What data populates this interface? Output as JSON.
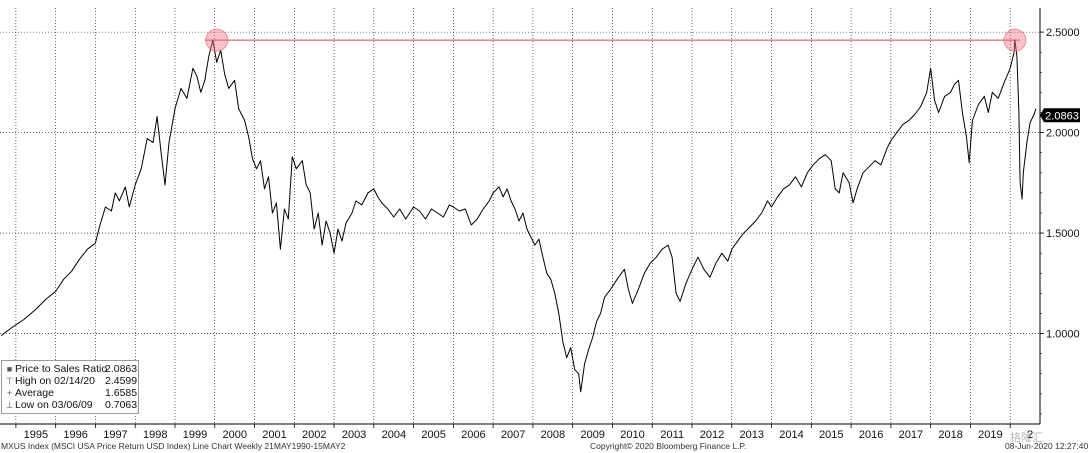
{
  "chart_data": {
    "type": "line",
    "x_tick_labels": [
      "1995",
      "1996",
      "1997",
      "1998",
      "1999",
      "2000",
      "2001",
      "2002",
      "2003",
      "2004",
      "2005",
      "2006",
      "2007",
      "2008",
      "2009",
      "2010",
      "2011",
      "2012",
      "2013",
      "2014",
      "2015",
      "2016",
      "2017",
      "2018",
      "2019",
      "2"
    ],
    "y_tick_labels": [
      "1.0000",
      "1.5000",
      "2.0000",
      "2.5000"
    ],
    "y_ticks": [
      1.0,
      1.5,
      2.0,
      2.5
    ],
    "ylim": [
      0.55,
      2.62
    ],
    "xlim": [
      1994.6,
      2020.75
    ],
    "last_value_label": "2.0863",
    "series": [
      {
        "name": "Price to Sales Ratio",
        "color": "#000000",
        "points": [
          [
            1994.63,
            0.99
          ],
          [
            1994.9,
            1.03
          ],
          [
            1995.2,
            1.07
          ],
          [
            1995.5,
            1.12
          ],
          [
            1995.75,
            1.17
          ],
          [
            1996.0,
            1.21
          ],
          [
            1996.2,
            1.27
          ],
          [
            1996.4,
            1.31
          ],
          [
            1996.6,
            1.37
          ],
          [
            1996.8,
            1.42
          ],
          [
            1997.0,
            1.45
          ],
          [
            1997.1,
            1.53
          ],
          [
            1997.25,
            1.63
          ],
          [
            1997.4,
            1.61
          ],
          [
            1997.5,
            1.7
          ],
          [
            1997.6,
            1.66
          ],
          [
            1997.75,
            1.73
          ],
          [
            1997.85,
            1.63
          ],
          [
            1998.0,
            1.74
          ],
          [
            1998.15,
            1.82
          ],
          [
            1998.3,
            1.97
          ],
          [
            1998.45,
            1.95
          ],
          [
            1998.55,
            2.08
          ],
          [
            1998.65,
            1.9
          ],
          [
            1998.75,
            1.74
          ],
          [
            1998.85,
            1.95
          ],
          [
            1999.0,
            2.12
          ],
          [
            1999.15,
            2.22
          ],
          [
            1999.3,
            2.17
          ],
          [
            1999.45,
            2.32
          ],
          [
            1999.55,
            2.28
          ],
          [
            1999.65,
            2.2
          ],
          [
            1999.75,
            2.26
          ],
          [
            1999.85,
            2.38
          ],
          [
            1999.95,
            2.46
          ],
          [
            2000.05,
            2.35
          ],
          [
            2000.15,
            2.41
          ],
          [
            2000.25,
            2.29
          ],
          [
            2000.35,
            2.22
          ],
          [
            2000.5,
            2.26
          ],
          [
            2000.6,
            2.12
          ],
          [
            2000.75,
            2.06
          ],
          [
            2000.85,
            1.98
          ],
          [
            2000.95,
            1.87
          ],
          [
            2001.05,
            1.82
          ],
          [
            2001.15,
            1.86
          ],
          [
            2001.25,
            1.72
          ],
          [
            2001.35,
            1.78
          ],
          [
            2001.45,
            1.6
          ],
          [
            2001.55,
            1.65
          ],
          [
            2001.65,
            1.42
          ],
          [
            2001.75,
            1.62
          ],
          [
            2001.85,
            1.57
          ],
          [
            2001.95,
            1.88
          ],
          [
            2002.05,
            1.82
          ],
          [
            2002.2,
            1.86
          ],
          [
            2002.3,
            1.74
          ],
          [
            2002.4,
            1.7
          ],
          [
            2002.5,
            1.52
          ],
          [
            2002.6,
            1.6
          ],
          [
            2002.7,
            1.44
          ],
          [
            2002.8,
            1.56
          ],
          [
            2002.9,
            1.5
          ],
          [
            2003.0,
            1.4
          ],
          [
            2003.1,
            1.52
          ],
          [
            2003.2,
            1.46
          ],
          [
            2003.3,
            1.55
          ],
          [
            2003.45,
            1.6
          ],
          [
            2003.55,
            1.66
          ],
          [
            2003.7,
            1.64
          ],
          [
            2003.85,
            1.7
          ],
          [
            2004.0,
            1.72
          ],
          [
            2004.1,
            1.68
          ],
          [
            2004.2,
            1.65
          ],
          [
            2004.35,
            1.62
          ],
          [
            2004.5,
            1.58
          ],
          [
            2004.65,
            1.62
          ],
          [
            2004.8,
            1.57
          ],
          [
            2005.0,
            1.63
          ],
          [
            2005.15,
            1.61
          ],
          [
            2005.3,
            1.57
          ],
          [
            2005.45,
            1.62
          ],
          [
            2005.6,
            1.6
          ],
          [
            2005.75,
            1.58
          ],
          [
            2005.9,
            1.64
          ],
          [
            2006.0,
            1.63
          ],
          [
            2006.15,
            1.61
          ],
          [
            2006.3,
            1.62
          ],
          [
            2006.45,
            1.54
          ],
          [
            2006.6,
            1.57
          ],
          [
            2006.75,
            1.62
          ],
          [
            2006.9,
            1.66
          ],
          [
            2007.0,
            1.7
          ],
          [
            2007.15,
            1.73
          ],
          [
            2007.25,
            1.68
          ],
          [
            2007.35,
            1.72
          ],
          [
            2007.45,
            1.66
          ],
          [
            2007.55,
            1.62
          ],
          [
            2007.65,
            1.56
          ],
          [
            2007.75,
            1.6
          ],
          [
            2007.85,
            1.52
          ],
          [
            2007.95,
            1.48
          ],
          [
            2008.05,
            1.44
          ],
          [
            2008.15,
            1.47
          ],
          [
            2008.25,
            1.38
          ],
          [
            2008.35,
            1.3
          ],
          [
            2008.45,
            1.27
          ],
          [
            2008.55,
            1.2
          ],
          [
            2008.65,
            1.1
          ],
          [
            2008.75,
            0.96
          ],
          [
            2008.85,
            0.88
          ],
          [
            2008.95,
            0.93
          ],
          [
            2009.05,
            0.82
          ],
          [
            2009.15,
            0.8
          ],
          [
            2009.2,
            0.71
          ],
          [
            2009.3,
            0.85
          ],
          [
            2009.4,
            0.92
          ],
          [
            2009.5,
            0.98
          ],
          [
            2009.6,
            1.06
          ],
          [
            2009.7,
            1.1
          ],
          [
            2009.8,
            1.18
          ],
          [
            2009.95,
            1.22
          ],
          [
            2010.05,
            1.25
          ],
          [
            2010.15,
            1.28
          ],
          [
            2010.3,
            1.32
          ],
          [
            2010.4,
            1.22
          ],
          [
            2010.5,
            1.15
          ],
          [
            2010.65,
            1.22
          ],
          [
            2010.8,
            1.3
          ],
          [
            2010.95,
            1.35
          ],
          [
            2011.1,
            1.38
          ],
          [
            2011.25,
            1.42
          ],
          [
            2011.4,
            1.44
          ],
          [
            2011.5,
            1.38
          ],
          [
            2011.6,
            1.2
          ],
          [
            2011.7,
            1.16
          ],
          [
            2011.85,
            1.25
          ],
          [
            2012.0,
            1.32
          ],
          [
            2012.15,
            1.38
          ],
          [
            2012.3,
            1.32
          ],
          [
            2012.45,
            1.28
          ],
          [
            2012.6,
            1.35
          ],
          [
            2012.75,
            1.4
          ],
          [
            2012.9,
            1.36
          ],
          [
            2013.0,
            1.42
          ],
          [
            2013.15,
            1.46
          ],
          [
            2013.3,
            1.5
          ],
          [
            2013.45,
            1.53
          ],
          [
            2013.6,
            1.56
          ],
          [
            2013.75,
            1.6
          ],
          [
            2013.9,
            1.66
          ],
          [
            2014.0,
            1.63
          ],
          [
            2014.15,
            1.68
          ],
          [
            2014.3,
            1.72
          ],
          [
            2014.45,
            1.74
          ],
          [
            2014.6,
            1.78
          ],
          [
            2014.75,
            1.73
          ],
          [
            2014.9,
            1.8
          ],
          [
            2015.05,
            1.84
          ],
          [
            2015.2,
            1.87
          ],
          [
            2015.35,
            1.89
          ],
          [
            2015.5,
            1.86
          ],
          [
            2015.6,
            1.72
          ],
          [
            2015.7,
            1.7
          ],
          [
            2015.8,
            1.8
          ],
          [
            2015.95,
            1.75
          ],
          [
            2016.05,
            1.65
          ],
          [
            2016.15,
            1.72
          ],
          [
            2016.3,
            1.8
          ],
          [
            2016.45,
            1.83
          ],
          [
            2016.6,
            1.86
          ],
          [
            2016.75,
            1.84
          ],
          [
            2016.9,
            1.92
          ],
          [
            2017.0,
            1.96
          ],
          [
            2017.15,
            2.0
          ],
          [
            2017.3,
            2.04
          ],
          [
            2017.45,
            2.06
          ],
          [
            2017.6,
            2.09
          ],
          [
            2017.75,
            2.13
          ],
          [
            2017.9,
            2.2
          ],
          [
            2018.0,
            2.32
          ],
          [
            2018.1,
            2.16
          ],
          [
            2018.2,
            2.1
          ],
          [
            2018.35,
            2.18
          ],
          [
            2018.5,
            2.2
          ],
          [
            2018.6,
            2.24
          ],
          [
            2018.7,
            2.26
          ],
          [
            2018.8,
            2.1
          ],
          [
            2018.9,
            1.98
          ],
          [
            2018.97,
            1.85
          ],
          [
            2019.05,
            2.06
          ],
          [
            2019.2,
            2.14
          ],
          [
            2019.35,
            2.18
          ],
          [
            2019.45,
            2.1
          ],
          [
            2019.55,
            2.2
          ],
          [
            2019.7,
            2.17
          ],
          [
            2019.85,
            2.25
          ],
          [
            2020.0,
            2.32
          ],
          [
            2020.1,
            2.4
          ],
          [
            2020.12,
            2.46
          ],
          [
            2020.17,
            2.38
          ],
          [
            2020.22,
            2.1
          ],
          [
            2020.25,
            1.75
          ],
          [
            2020.3,
            1.67
          ],
          [
            2020.33,
            1.8
          ],
          [
            2020.42,
            1.95
          ],
          [
            2020.5,
            2.05
          ],
          [
            2020.6,
            2.09
          ],
          [
            2020.65,
            2.12
          ]
        ]
      }
    ],
    "high_line": {
      "value": 2.4599,
      "x_start": 1999.75,
      "x_end": 2020.25,
      "color": "#d94040"
    },
    "highlight_circles": [
      {
        "x": 2000.05,
        "y": 2.4599
      },
      {
        "x": 2020.12,
        "y": 2.4599
      }
    ],
    "legend": [
      {
        "symbol": "■",
        "label": "Price to Sales Ratio",
        "value": "2.0863"
      },
      {
        "symbol": "⊤",
        "label": "High on 02/14/20",
        "value": "2.4599"
      },
      {
        "symbol": "+",
        "label": "Average",
        "value": "1.6585"
      },
      {
        "symbol": "⊥",
        "label": "Low on 03/06/09",
        "value": "0.7063"
      }
    ],
    "legend_placement": "bottom-left",
    "grid": true
  },
  "footer": {
    "left": "MXUS Index (MSCI USA Price Return USD Index) Line Chart  Weekly 21MAY1990-15MAY2",
    "middle": "Copyright© 2020 Bloomberg Finance L.P.",
    "right": "08-Jun-2020 12:27:40"
  },
  "watermark": "格隆汇"
}
